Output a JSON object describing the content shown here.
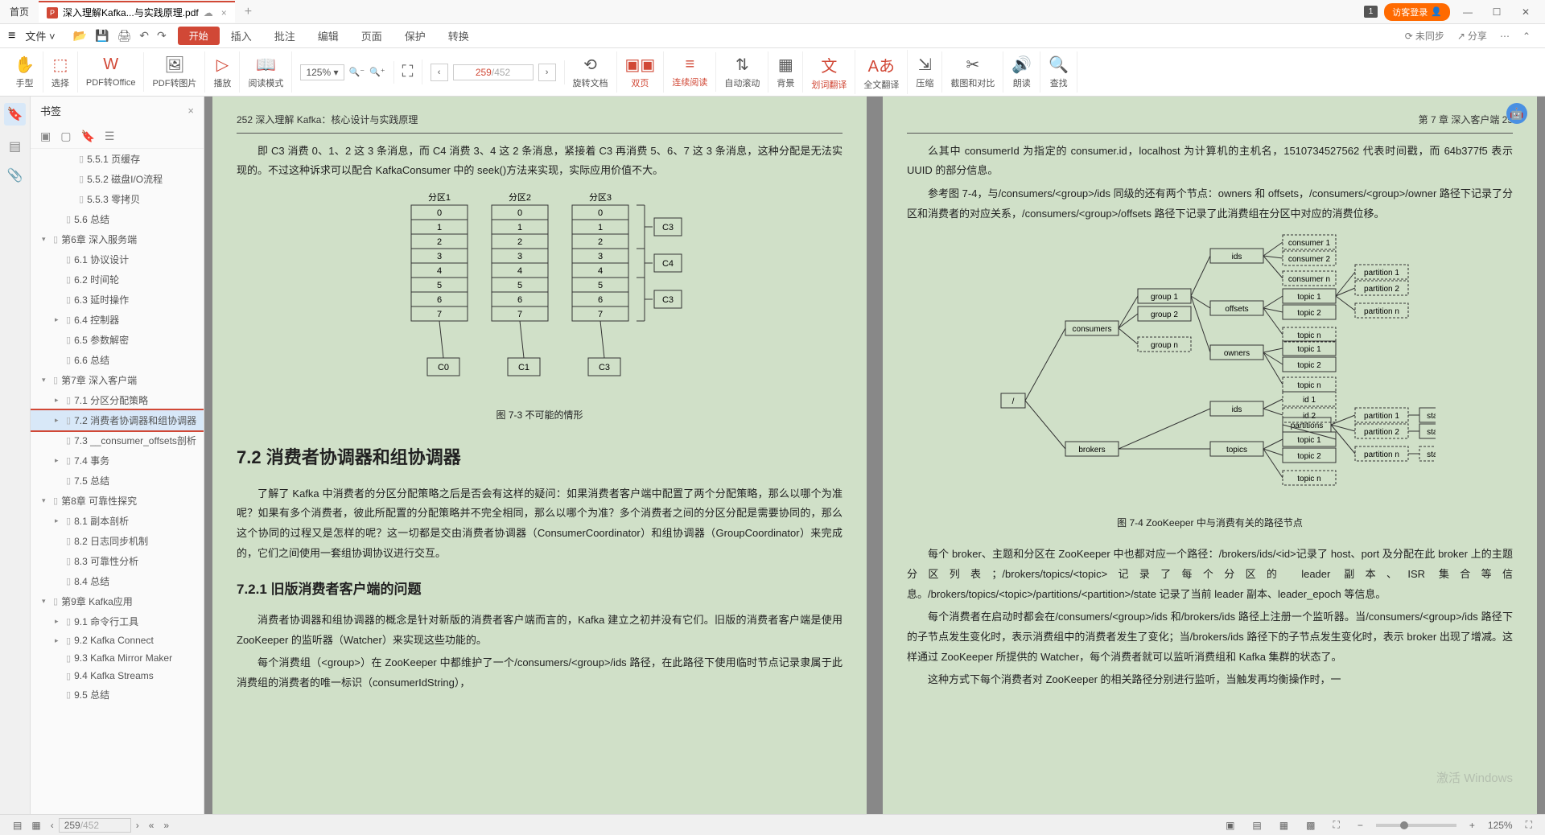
{
  "titlebar": {
    "home": "首页",
    "tabIcon": "P",
    "tabTitle": "深入理解Kafka...与实践原理.pdf",
    "badge": "1",
    "login": "访客登录"
  },
  "menubar": {
    "file": "文件",
    "start": "开始",
    "tabs": [
      "插入",
      "批注",
      "编辑",
      "页面",
      "保护",
      "转换"
    ],
    "unsync": "未同步",
    "share": "分享"
  },
  "toolbar": {
    "hand": "手型",
    "select": "选择",
    "pdfOffice": "PDF转Office",
    "pdfImage": "PDF转图片",
    "play": "播放",
    "readMode": "阅读模式",
    "zoom": "125%",
    "pageCur": "259",
    "pageTotal": "/452",
    "rotate": "旋转文档",
    "dualPage": "双页",
    "contRead": "连续阅读",
    "autoScroll": "自动滚动",
    "bg": "背景",
    "lineTranslate": "划词翻译",
    "fullTranslate": "全文翻译",
    "compress": "压缩",
    "cropCompare": "截图和对比",
    "readAloud": "朗读",
    "find": "查找"
  },
  "sidebar": {
    "title": "书签",
    "items": [
      {
        "lvl": 3,
        "arr": "",
        "label": "5.5.1 页缓存"
      },
      {
        "lvl": 3,
        "arr": "",
        "label": "5.5.2 磁盘I/O流程"
      },
      {
        "lvl": 3,
        "arr": "",
        "label": "5.5.3 零拷贝"
      },
      {
        "lvl": 2,
        "arr": "",
        "label": "5.6 总结"
      },
      {
        "lvl": 1,
        "arr": "▾",
        "label": "第6章 深入服务端"
      },
      {
        "lvl": 2,
        "arr": "",
        "label": "6.1 协议设计"
      },
      {
        "lvl": 2,
        "arr": "",
        "label": "6.2 时间轮"
      },
      {
        "lvl": 2,
        "arr": "",
        "label": "6.3 延时操作"
      },
      {
        "lvl": 2,
        "arr": "▸",
        "label": "6.4 控制器"
      },
      {
        "lvl": 2,
        "arr": "",
        "label": "6.5 参数解密"
      },
      {
        "lvl": 2,
        "arr": "",
        "label": "6.6 总结"
      },
      {
        "lvl": 1,
        "arr": "▾",
        "label": "第7章 深入客户端"
      },
      {
        "lvl": 2,
        "arr": "▸",
        "label": "7.1 分区分配策略"
      },
      {
        "lvl": 2,
        "arr": "▸",
        "label": "7.2 消费者协调器和组协调器",
        "hl": true
      },
      {
        "lvl": 2,
        "arr": "",
        "label": "7.3 __consumer_offsets剖析"
      },
      {
        "lvl": 2,
        "arr": "▸",
        "label": "7.4 事务"
      },
      {
        "lvl": 2,
        "arr": "",
        "label": "7.5 总结"
      },
      {
        "lvl": 1,
        "arr": "▾",
        "label": "第8章 可靠性探究"
      },
      {
        "lvl": 2,
        "arr": "▸",
        "label": "8.1 副本剖析"
      },
      {
        "lvl": 2,
        "arr": "",
        "label": "8.2 日志同步机制"
      },
      {
        "lvl": 2,
        "arr": "",
        "label": "8.3 可靠性分析"
      },
      {
        "lvl": 2,
        "arr": "",
        "label": "8.4 总结"
      },
      {
        "lvl": 1,
        "arr": "▾",
        "label": "第9章 Kafka应用"
      },
      {
        "lvl": 2,
        "arr": "▸",
        "label": "9.1 命令行工具"
      },
      {
        "lvl": 2,
        "arr": "▸",
        "label": "9.2 Kafka Connect"
      },
      {
        "lvl": 2,
        "arr": "",
        "label": "9.3 Kafka Mirror Maker"
      },
      {
        "lvl": 2,
        "arr": "",
        "label": "9.4 Kafka Streams"
      },
      {
        "lvl": 2,
        "arr": "",
        "label": "9.5 总结"
      }
    ]
  },
  "pageLeft": {
    "header": "252    深入理解 Kafka：核心设计与实践原理",
    "p1": "即 C3 消费 0、1、2 这 3 条消息，而 C4 消费 3、4 这 2 条消息，紧接着 C3 再消费 5、6、7 这 3 条消息，这种分配是无法实现的。不过这种诉求可以配合 KafkaConsumer 中的 seek()方法来实现，实际应用价值不大。",
    "fig73": {
      "cols": [
        "分区1",
        "分区2",
        "分区3"
      ],
      "rows": [
        "0",
        "1",
        "2",
        "3",
        "4",
        "5",
        "6",
        "7"
      ],
      "consumers": [
        "C0",
        "C1",
        "C3"
      ],
      "right": [
        "C3",
        "C4",
        "C3"
      ],
      "caption": "图 7-3  不可能的情形"
    },
    "h72": "7.2  消费者协调器和组协调器",
    "p2": "了解了 Kafka 中消费者的分区分配策略之后是否会有这样的疑问：如果消费者客户端中配置了两个分配策略，那么以哪个为准呢？如果有多个消费者，彼此所配置的分配策略并不完全相同，那么以哪个为准？多个消费者之间的分区分配是需要协同的，那么这个协同的过程又是怎样的呢？这一切都是交由消费者协调器（ConsumerCoordinator）和组协调器（GroupCoordinator）来完成的，它们之间使用一套组协调协议进行交互。",
    "h721": "7.2.1  旧版消费者客户端的问题",
    "p3": "消费者协调器和组协调器的概念是针对新版的消费者客户端而言的，Kafka 建立之初并没有它们。旧版的消费者客户端是使用 ZooKeeper 的监听器（Watcher）来实现这些功能的。",
    "p4": "每个消费组（<group>）在 ZooKeeper 中都维护了一个/consumers/<group>/ids 路径，在此路径下使用临时节点记录隶属于此消费组的消费者的唯一标识（consumerIdString），"
  },
  "pageRight": {
    "header": "第 7 章  深入客户端    25",
    "p1": "么其中 consumerId 为指定的 consumer.id，localhost 为计算机的主机名，1510734527562 代表时间戳，而 64b377f5 表示 UUID 的部分信息。",
    "p2": "参考图 7-4，与/consumers/<group>/ids 同级的还有两个节点：owners 和 offsets，/consumers/<group>/owner 路径下记录了分区和消费者的对应关系，/consumers/<group>/offsets 路径下记录了此消费组在分区中对应的消费位移。",
    "fig74": {
      "root": "/",
      "caption": "图 7-4  ZooKeeper 中与消费有关的路径节点",
      "nodes": {
        "consumers": "consumers",
        "brokers": "brokers",
        "group1": "group 1",
        "group2": "group 2",
        "groupn": "group n",
        "ids": "ids",
        "offsets": "offsets",
        "owners": "owners",
        "cons1": "consumer 1",
        "cons2": "consumer 2",
        "consn": "consumer n",
        "topic1": "topic 1",
        "topic2": "topic 2",
        "topicn": "topic n",
        "part1": "partition 1",
        "part2": "partition 2",
        "partn": "partition n",
        "id1": "id 1",
        "id2": "id 2",
        "topics": "topics",
        "partitions": "partitions",
        "state": "state"
      }
    },
    "p3": "每个 broker、主题和分区在 ZooKeeper 中也都对应一个路径：/brokers/ids/<id>记录了 host、port 及分配在此 broker 上的主题分区列表；/brokers/topics/<topic>记录了每个分区的 leader 副本、ISR 集合等信息。/brokers/topics/<topic>/partitions/<partition>/state 记录了当前 leader 副本、leader_epoch 等信息。",
    "p4": "每个消费者在启动时都会在/consumers/<group>/ids 和/brokers/ids 路径上注册一个监听器。当/consumers/<group>/ids 路径下的子节点发生变化时，表示消费组中的消费者发生了变化；当/brokers/ids 路径下的子节点发生变化时，表示 broker 出现了增减。这样通过 ZooKeeper 所提供的 Watcher，每个消费者就可以监听消费组和 Kafka 集群的状态了。",
    "p5": "这种方式下每个消费者对 ZooKeeper 的相关路径分别进行监听，当触发再均衡操作时，一"
  },
  "statusbar": {
    "page": "259",
    "total": "/452",
    "zoom": "125%"
  },
  "watermark": "激活 Windows",
  "colors": {
    "accent": "#d14836",
    "pageBg": "#d0e0c8",
    "selBlue": "#d8e8f8"
  }
}
